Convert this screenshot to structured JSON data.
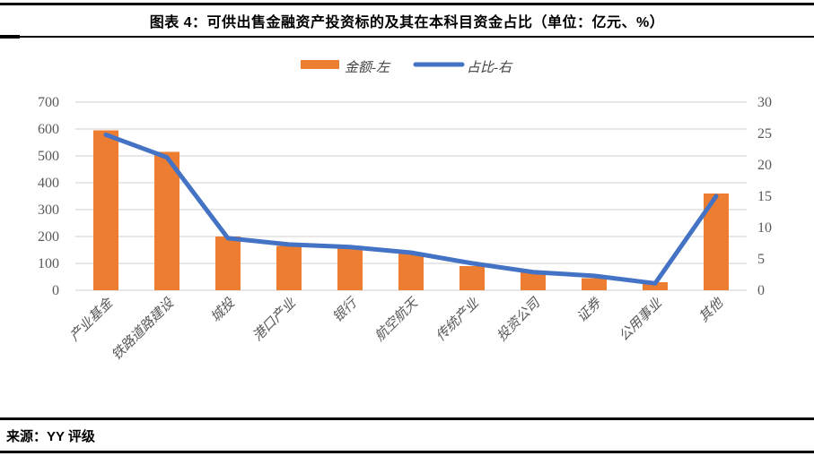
{
  "header": {
    "title": "图表 4：可供出售金融资产投资标的及其在本科目资金占比（单位：亿元、%）"
  },
  "footer": {
    "source": "来源：YY 评级"
  },
  "colors": {
    "bar": "#ED7D31",
    "line": "#4472C4",
    "gridline": "#D9D9D9",
    "axis_text": "#595959",
    "border": "#000000"
  },
  "chart_data": {
    "type": "bar",
    "subtype": "bar+line dual-axis",
    "categories": [
      "产业基金",
      "铁路道路建设",
      "城投",
      "港口产业",
      "银行",
      "航空航天",
      "传统产业",
      "投资公司",
      "证券",
      "公用事业",
      "其他"
    ],
    "series": [
      {
        "name": "金额-左",
        "type": "bar",
        "axis": "left",
        "color": "#ED7D31",
        "values": [
          595,
          515,
          200,
          165,
          160,
          140,
          90,
          70,
          45,
          30,
          360
        ]
      },
      {
        "name": "占比-右",
        "type": "line",
        "axis": "right",
        "color": "#4472C4",
        "values": [
          24.8,
          21.2,
          8.3,
          7.3,
          6.9,
          6.0,
          4.3,
          2.9,
          2.3,
          1.1,
          15.0
        ]
      }
    ],
    "title": "图表 4：可供出售金融资产投资标的及其在本科目资金占比（单位：亿元、%）",
    "xlabel": "",
    "ylabel_left": "亿元",
    "ylabel_right": "%",
    "left_axis": {
      "min": 0,
      "max": 700,
      "step": 100,
      "ticks": [
        0,
        100,
        200,
        300,
        400,
        500,
        600,
        700
      ]
    },
    "right_axis": {
      "min": 0,
      "max": 30,
      "step": 5,
      "ticks": [
        0,
        5,
        10,
        15,
        20,
        25,
        30
      ]
    },
    "grid": true,
    "legend_position": "top",
    "legend": [
      {
        "label": "金额-左",
        "swatch": "bar-swatch",
        "color": "#ED7D31"
      },
      {
        "label": "占比-右",
        "swatch": "line-swatch",
        "color": "#4472C4"
      }
    ]
  }
}
